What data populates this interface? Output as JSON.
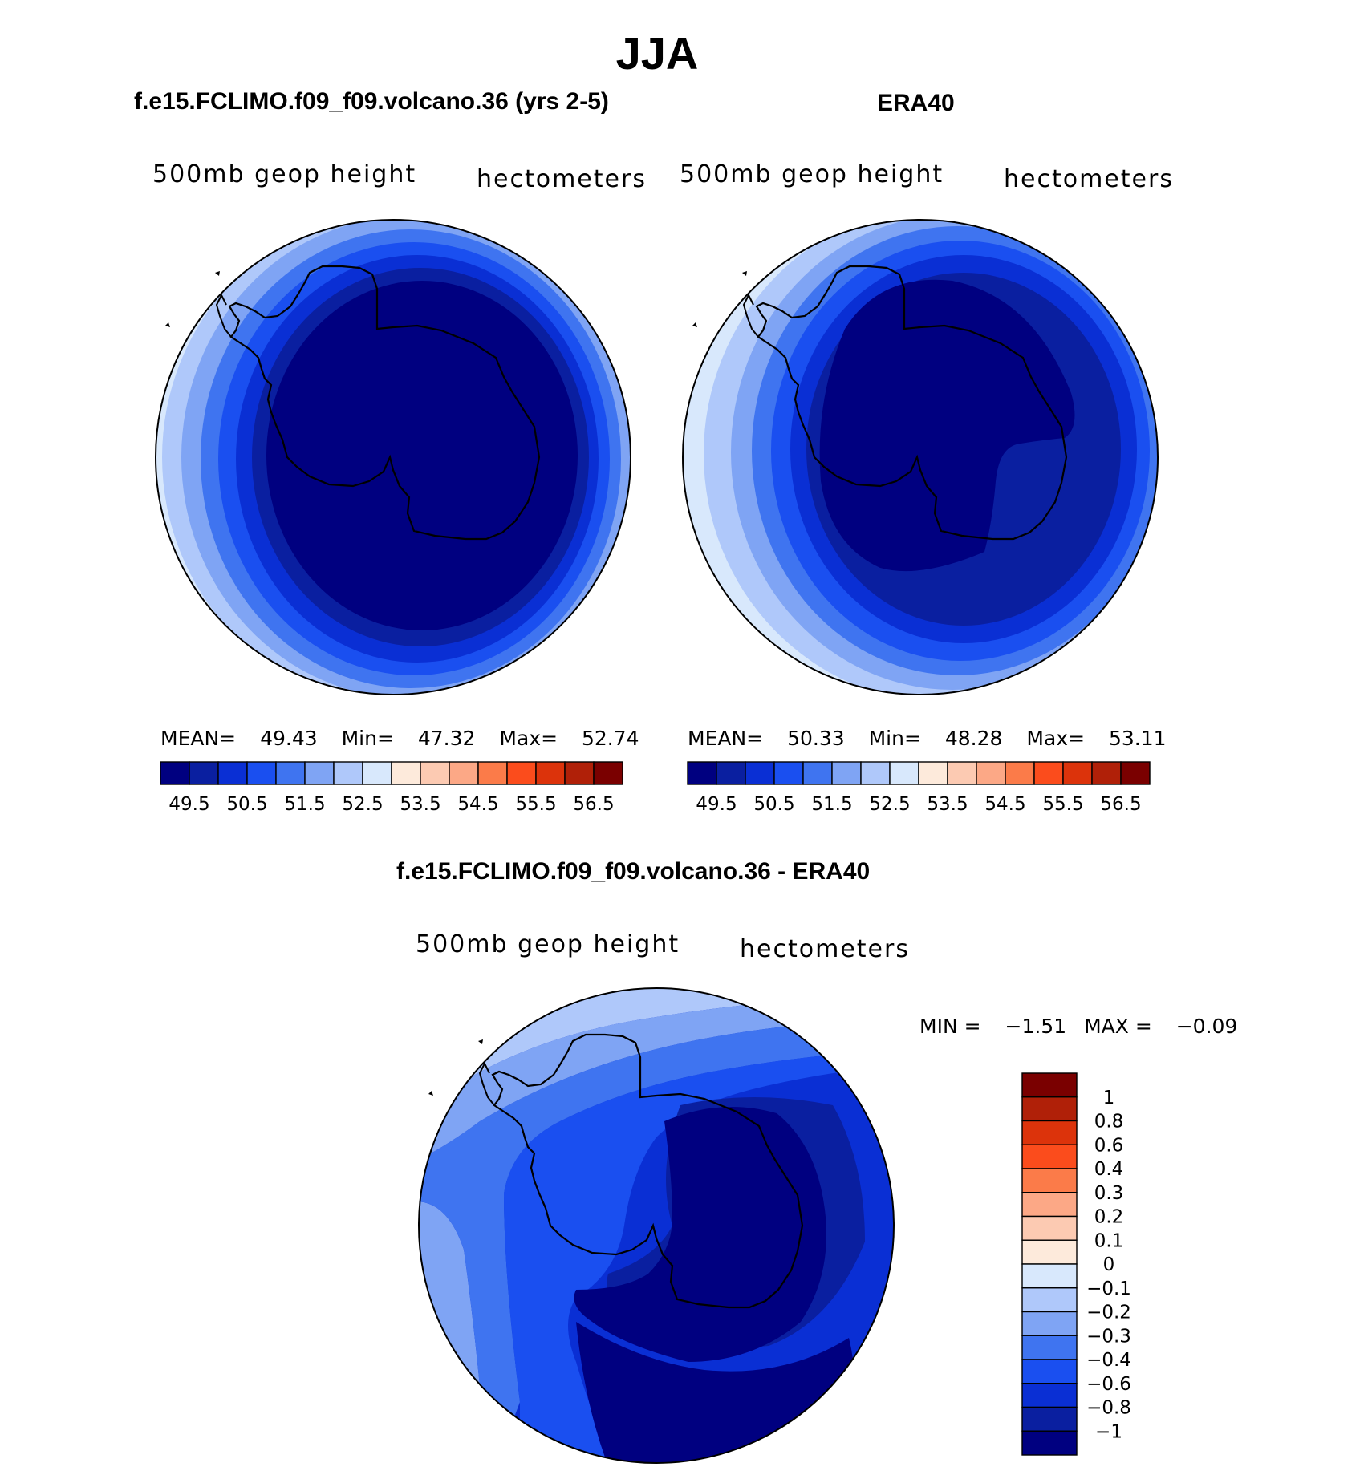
{
  "season": "JJA",
  "panels": [
    {
      "case": "f.e15.FCLIMO.f09_f09.volcano.36 (yrs 2-5)",
      "field": "500mb geop height",
      "units": "hectometers",
      "stats": {
        "mean_label": "MEAN=",
        "mean": "49.43",
        "min_label": "Min=",
        "min": "47.32",
        "max_label": "Max=",
        "max": "52.74"
      }
    },
    {
      "case": "ERA40",
      "field": "500mb geop height",
      "units": "hectometers",
      "stats": {
        "mean_label": "MEAN=",
        "mean": "50.33",
        "min_label": "Min=",
        "min": "48.28",
        "max_label": "Max=",
        "max": "53.11"
      }
    }
  ],
  "diff_panel": {
    "case": "f.e15.FCLIMO.f09_f09.volcano.36 - ERA40",
    "field": "500mb geop height",
    "units": "hectometers",
    "stats": {
      "min_label": "MIN =",
      "min": "−1.51",
      "max_label": "MAX =",
      "max": "−0.09"
    }
  },
  "colorbar_abs": {
    "colors": [
      "#000080",
      "#0a1fa0",
      "#0a2fd4",
      "#1a4ff0",
      "#3f74f0",
      "#7fa4f4",
      "#afc8fa",
      "#d8e8fc",
      "#fdeadb",
      "#fccab2",
      "#fca886",
      "#fb7b49",
      "#fb4c1c",
      "#dc330b",
      "#b02008",
      "#7a0000"
    ],
    "labels": [
      "49.5",
      "50.5",
      "51.5",
      "52.5",
      "53.5",
      "54.5",
      "55.5",
      "56.5"
    ]
  },
  "colorbar_diff": {
    "colors": [
      "#7a0000",
      "#b02008",
      "#dc330b",
      "#fb4c1c",
      "#fb7b49",
      "#fca886",
      "#fccab2",
      "#fdeadb",
      "#d8e8fc",
      "#afc8fa",
      "#7fa4f4",
      "#3f74f0",
      "#1a4ff0",
      "#0a2fd4",
      "#0a1fa0",
      "#000080"
    ],
    "labels": [
      "1",
      "0.8",
      "0.6",
      "0.4",
      "0.3",
      "0.2",
      "0.1",
      "0",
      "−0.1",
      "−0.2",
      "−0.3",
      "−0.4",
      "−0.6",
      "−0.8",
      "−1"
    ]
  }
}
